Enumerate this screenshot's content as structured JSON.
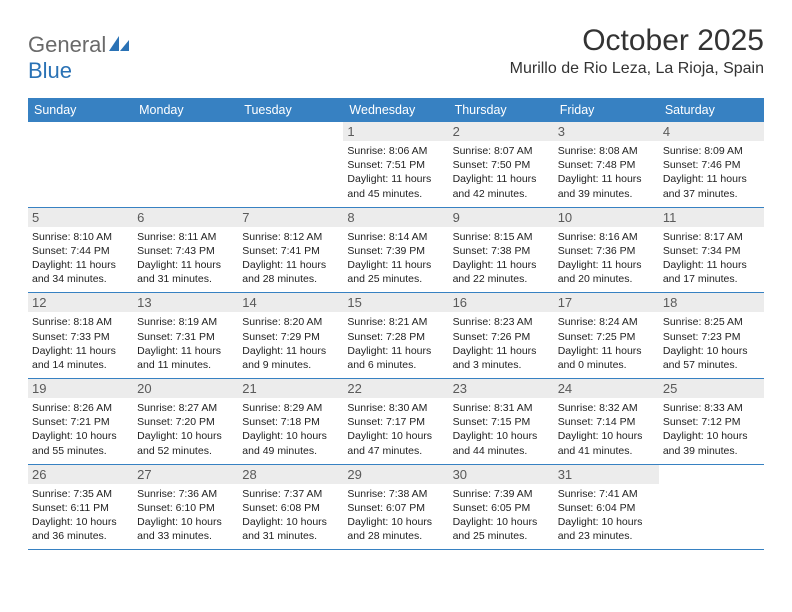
{
  "brand": {
    "text1": "General",
    "text2": "Blue"
  },
  "colors": {
    "header_bg": "#3781c2",
    "header_text": "#ffffff",
    "daynum_bg": "#ececec",
    "daynum_text": "#5a5a5a",
    "border": "#3781c2",
    "logo_gray": "#6a6a6a",
    "logo_blue": "#2a72b5"
  },
  "title": "October 2025",
  "location": "Murillo de Rio Leza, La Rioja, Spain",
  "daynames": [
    "Sunday",
    "Monday",
    "Tuesday",
    "Wednesday",
    "Thursday",
    "Friday",
    "Saturday"
  ],
  "first_weekday": 3,
  "days": [
    {
      "n": "1",
      "sunrise": "8:06 AM",
      "sunset": "7:51 PM",
      "dl1": "Daylight: 11 hours",
      "dl2": "and 45 minutes."
    },
    {
      "n": "2",
      "sunrise": "8:07 AM",
      "sunset": "7:50 PM",
      "dl1": "Daylight: 11 hours",
      "dl2": "and 42 minutes."
    },
    {
      "n": "3",
      "sunrise": "8:08 AM",
      "sunset": "7:48 PM",
      "dl1": "Daylight: 11 hours",
      "dl2": "and 39 minutes."
    },
    {
      "n": "4",
      "sunrise": "8:09 AM",
      "sunset": "7:46 PM",
      "dl1": "Daylight: 11 hours",
      "dl2": "and 37 minutes."
    },
    {
      "n": "5",
      "sunrise": "8:10 AM",
      "sunset": "7:44 PM",
      "dl1": "Daylight: 11 hours",
      "dl2": "and 34 minutes."
    },
    {
      "n": "6",
      "sunrise": "8:11 AM",
      "sunset": "7:43 PM",
      "dl1": "Daylight: 11 hours",
      "dl2": "and 31 minutes."
    },
    {
      "n": "7",
      "sunrise": "8:12 AM",
      "sunset": "7:41 PM",
      "dl1": "Daylight: 11 hours",
      "dl2": "and 28 minutes."
    },
    {
      "n": "8",
      "sunrise": "8:14 AM",
      "sunset": "7:39 PM",
      "dl1": "Daylight: 11 hours",
      "dl2": "and 25 minutes."
    },
    {
      "n": "9",
      "sunrise": "8:15 AM",
      "sunset": "7:38 PM",
      "dl1": "Daylight: 11 hours",
      "dl2": "and 22 minutes."
    },
    {
      "n": "10",
      "sunrise": "8:16 AM",
      "sunset": "7:36 PM",
      "dl1": "Daylight: 11 hours",
      "dl2": "and 20 minutes."
    },
    {
      "n": "11",
      "sunrise": "8:17 AM",
      "sunset": "7:34 PM",
      "dl1": "Daylight: 11 hours",
      "dl2": "and 17 minutes."
    },
    {
      "n": "12",
      "sunrise": "8:18 AM",
      "sunset": "7:33 PM",
      "dl1": "Daylight: 11 hours",
      "dl2": "and 14 minutes."
    },
    {
      "n": "13",
      "sunrise": "8:19 AM",
      "sunset": "7:31 PM",
      "dl1": "Daylight: 11 hours",
      "dl2": "and 11 minutes."
    },
    {
      "n": "14",
      "sunrise": "8:20 AM",
      "sunset": "7:29 PM",
      "dl1": "Daylight: 11 hours",
      "dl2": "and 9 minutes."
    },
    {
      "n": "15",
      "sunrise": "8:21 AM",
      "sunset": "7:28 PM",
      "dl1": "Daylight: 11 hours",
      "dl2": "and 6 minutes."
    },
    {
      "n": "16",
      "sunrise": "8:23 AM",
      "sunset": "7:26 PM",
      "dl1": "Daylight: 11 hours",
      "dl2": "and 3 minutes."
    },
    {
      "n": "17",
      "sunrise": "8:24 AM",
      "sunset": "7:25 PM",
      "dl1": "Daylight: 11 hours",
      "dl2": "and 0 minutes."
    },
    {
      "n": "18",
      "sunrise": "8:25 AM",
      "sunset": "7:23 PM",
      "dl1": "Daylight: 10 hours",
      "dl2": "and 57 minutes."
    },
    {
      "n": "19",
      "sunrise": "8:26 AM",
      "sunset": "7:21 PM",
      "dl1": "Daylight: 10 hours",
      "dl2": "and 55 minutes."
    },
    {
      "n": "20",
      "sunrise": "8:27 AM",
      "sunset": "7:20 PM",
      "dl1": "Daylight: 10 hours",
      "dl2": "and 52 minutes."
    },
    {
      "n": "21",
      "sunrise": "8:29 AM",
      "sunset": "7:18 PM",
      "dl1": "Daylight: 10 hours",
      "dl2": "and 49 minutes."
    },
    {
      "n": "22",
      "sunrise": "8:30 AM",
      "sunset": "7:17 PM",
      "dl1": "Daylight: 10 hours",
      "dl2": "and 47 minutes."
    },
    {
      "n": "23",
      "sunrise": "8:31 AM",
      "sunset": "7:15 PM",
      "dl1": "Daylight: 10 hours",
      "dl2": "and 44 minutes."
    },
    {
      "n": "24",
      "sunrise": "8:32 AM",
      "sunset": "7:14 PM",
      "dl1": "Daylight: 10 hours",
      "dl2": "and 41 minutes."
    },
    {
      "n": "25",
      "sunrise": "8:33 AM",
      "sunset": "7:12 PM",
      "dl1": "Daylight: 10 hours",
      "dl2": "and 39 minutes."
    },
    {
      "n": "26",
      "sunrise": "7:35 AM",
      "sunset": "6:11 PM",
      "dl1": "Daylight: 10 hours",
      "dl2": "and 36 minutes."
    },
    {
      "n": "27",
      "sunrise": "7:36 AM",
      "sunset": "6:10 PM",
      "dl1": "Daylight: 10 hours",
      "dl2": "and 33 minutes."
    },
    {
      "n": "28",
      "sunrise": "7:37 AM",
      "sunset": "6:08 PM",
      "dl1": "Daylight: 10 hours",
      "dl2": "and 31 minutes."
    },
    {
      "n": "29",
      "sunrise": "7:38 AM",
      "sunset": "6:07 PM",
      "dl1": "Daylight: 10 hours",
      "dl2": "and 28 minutes."
    },
    {
      "n": "30",
      "sunrise": "7:39 AM",
      "sunset": "6:05 PM",
      "dl1": "Daylight: 10 hours",
      "dl2": "and 25 minutes."
    },
    {
      "n": "31",
      "sunrise": "7:41 AM",
      "sunset": "6:04 PM",
      "dl1": "Daylight: 10 hours",
      "dl2": "and 23 minutes."
    }
  ],
  "labels": {
    "sunrise": "Sunrise: ",
    "sunset": "Sunset: "
  }
}
